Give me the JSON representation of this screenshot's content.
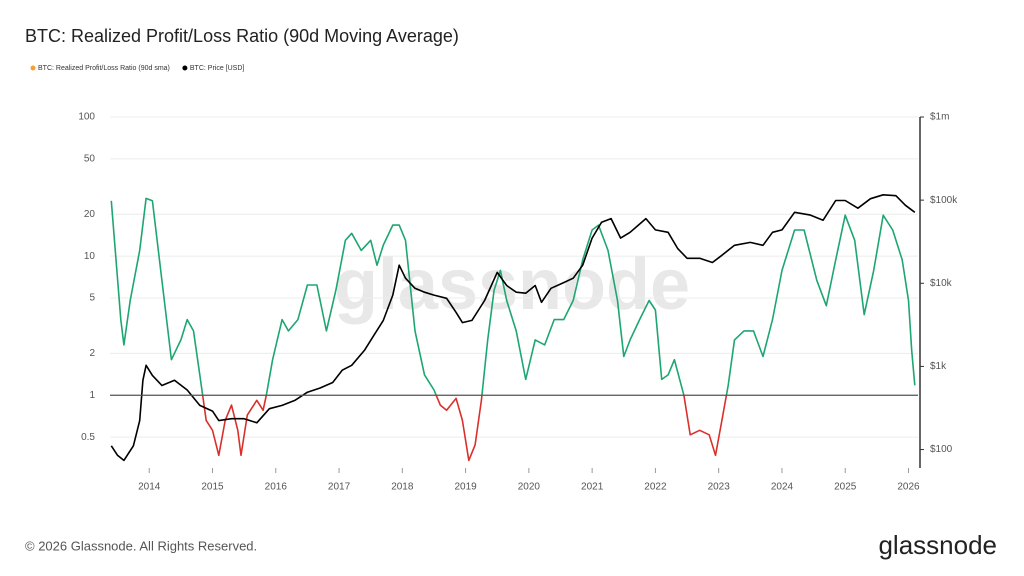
{
  "chart_data": {
    "type": "line",
    "title": "BTC: Realized Profit/Loss Ratio (90d Moving Average)",
    "watermark": "glassnode",
    "footer": "© 2026 Glassnode. All Rights Reserved.",
    "brand": "glassnode",
    "xlim": [
      2013.38,
      2026.15
    ],
    "xticks": [
      2014,
      2015,
      2016,
      2017,
      2018,
      2019,
      2020,
      2021,
      2022,
      2023,
      2024,
      2025,
      2026
    ],
    "ylim": [
      0.3,
      100
    ],
    "log_y": true,
    "yticks": [
      0.5,
      1,
      2,
      5,
      10,
      20,
      50,
      100
    ],
    "y2lim": [
      60,
      1000000
    ],
    "log_y2": true,
    "y2ticks": [
      {
        "value": 100,
        "label": "$100"
      },
      {
        "value": 1000,
        "label": "$1k"
      },
      {
        "value": 10000,
        "label": "$10k"
      },
      {
        "value": 100000,
        "label": "$100k"
      },
      {
        "value": 1000000,
        "label": "$1m"
      }
    ],
    "reference_line": 1,
    "grid": true,
    "legend": "top-left",
    "series": [
      {
        "name": "BTC: Realized Profit/Loss Ratio (90d sma)",
        "color": "#f5a030",
        "line_color_above": "#1ea672",
        "line_color_below": "#d9302c",
        "x": [
          2013.4,
          2013.55,
          2013.6,
          2013.7,
          2013.85,
          2013.95,
          2014.05,
          2014.2,
          2014.35,
          2014.5,
          2014.6,
          2014.7,
          2014.8,
          2014.9,
          2015.0,
          2015.1,
          2015.2,
          2015.3,
          2015.4,
          2015.45,
          2015.55,
          2015.7,
          2015.8,
          2015.85,
          2015.95,
          2016.1,
          2016.2,
          2016.35,
          2016.5,
          2016.65,
          2016.8,
          2016.95,
          2017.1,
          2017.2,
          2017.35,
          2017.5,
          2017.6,
          2017.7,
          2017.85,
          2017.95,
          2018.05,
          2018.2,
          2018.35,
          2018.5,
          2018.6,
          2018.7,
          2018.85,
          2018.95,
          2019.05,
          2019.15,
          2019.25,
          2019.35,
          2019.45,
          2019.55,
          2019.65,
          2019.8,
          2019.95,
          2020.1,
          2020.25,
          2020.4,
          2020.55,
          2020.7,
          2020.85,
          2021.0,
          2021.1,
          2021.25,
          2021.4,
          2021.5,
          2021.6,
          2021.75,
          2021.9,
          2022.0,
          2022.1,
          2022.2,
          2022.3,
          2022.45,
          2022.55,
          2022.7,
          2022.85,
          2022.95,
          2023.05,
          2023.15,
          2023.25,
          2023.4,
          2023.55,
          2023.7,
          2023.85,
          2024.0,
          2024.2,
          2024.35,
          2024.55,
          2024.7,
          2024.85,
          2025.0,
          2025.15,
          2025.3,
          2025.45,
          2025.6,
          2025.75,
          2025.9,
          2026.0,
          2026.05,
          2026.1
        ],
        "values": [
          25,
          3.5,
          2.3,
          4.8,
          11,
          26,
          25,
          6.7,
          1.8,
          2.5,
          3.5,
          2.9,
          1.4,
          0.66,
          0.56,
          0.37,
          0.66,
          0.85,
          0.56,
          0.37,
          0.72,
          0.92,
          0.78,
          1.0,
          1.8,
          3.5,
          2.9,
          3.5,
          6.2,
          6.2,
          2.9,
          5.7,
          13,
          14.6,
          11,
          13,
          8.6,
          12,
          16.7,
          16.7,
          13,
          2.9,
          1.4,
          1.09,
          0.85,
          0.78,
          0.95,
          0.66,
          0.34,
          0.44,
          0.92,
          2.5,
          5.7,
          7.9,
          4.8,
          2.9,
          1.3,
          2.5,
          2.3,
          3.5,
          3.5,
          4.8,
          9.4,
          15.4,
          16.7,
          11,
          4.8,
          1.9,
          2.5,
          3.5,
          4.8,
          4.1,
          1.3,
          1.4,
          1.8,
          1.0,
          0.52,
          0.56,
          0.52,
          0.37,
          0.66,
          1.18,
          2.5,
          2.9,
          2.9,
          1.9,
          3.5,
          7.9,
          15.4,
          15.4,
          6.7,
          4.4,
          9.4,
          19.7,
          13,
          3.8,
          7.9,
          19.7,
          15.4,
          9.4,
          4.8,
          2.1,
          1.18
        ]
      },
      {
        "name": "BTC: Price [USD]",
        "color": "#000000",
        "axis": "y2",
        "x": [
          2013.4,
          2013.5,
          2013.6,
          2013.75,
          2013.85,
          2013.9,
          2013.95,
          2014.05,
          2014.2,
          2014.4,
          2014.6,
          2014.8,
          2015.0,
          2015.1,
          2015.3,
          2015.5,
          2015.7,
          2015.9,
          2016.1,
          2016.3,
          2016.5,
          2016.7,
          2016.9,
          2017.05,
          2017.2,
          2017.4,
          2017.55,
          2017.7,
          2017.85,
          2017.95,
          2018.05,
          2018.2,
          2018.35,
          2018.5,
          2018.7,
          2018.85,
          2018.95,
          2019.1,
          2019.3,
          2019.5,
          2019.65,
          2019.8,
          2019.95,
          2020.1,
          2020.2,
          2020.35,
          2020.55,
          2020.7,
          2020.85,
          2021.0,
          2021.15,
          2021.3,
          2021.45,
          2021.6,
          2021.85,
          2022.0,
          2022.2,
          2022.35,
          2022.5,
          2022.7,
          2022.9,
          2023.05,
          2023.25,
          2023.5,
          2023.7,
          2023.85,
          2024.0,
          2024.2,
          2024.45,
          2024.65,
          2024.85,
          2025.0,
          2025.2,
          2025.4,
          2025.6,
          2025.8,
          2025.95,
          2026.1
        ],
        "values": [
          111,
          85,
          74,
          111,
          223,
          680,
          1030,
          780,
          590,
          680,
          520,
          340,
          290,
          223,
          235,
          235,
          210,
          310,
          340,
          390,
          490,
          550,
          640,
          900,
          1030,
          1560,
          2360,
          3580,
          7200,
          16500,
          11500,
          8700,
          7800,
          7200,
          6600,
          4470,
          3370,
          3580,
          6200,
          13500,
          9400,
          7800,
          7600,
          9400,
          5900,
          8700,
          10200,
          11500,
          16500,
          34900,
          54300,
          60000,
          34900,
          41000,
          60000,
          43800,
          41000,
          26300,
          20000,
          20000,
          17800,
          21700,
          28600,
          31000,
          28600,
          41000,
          43800,
          71500,
          66000,
          57300,
          99000,
          99000,
          80000,
          104000,
          116000,
          113000,
          87000,
          71500
        ]
      }
    ]
  }
}
